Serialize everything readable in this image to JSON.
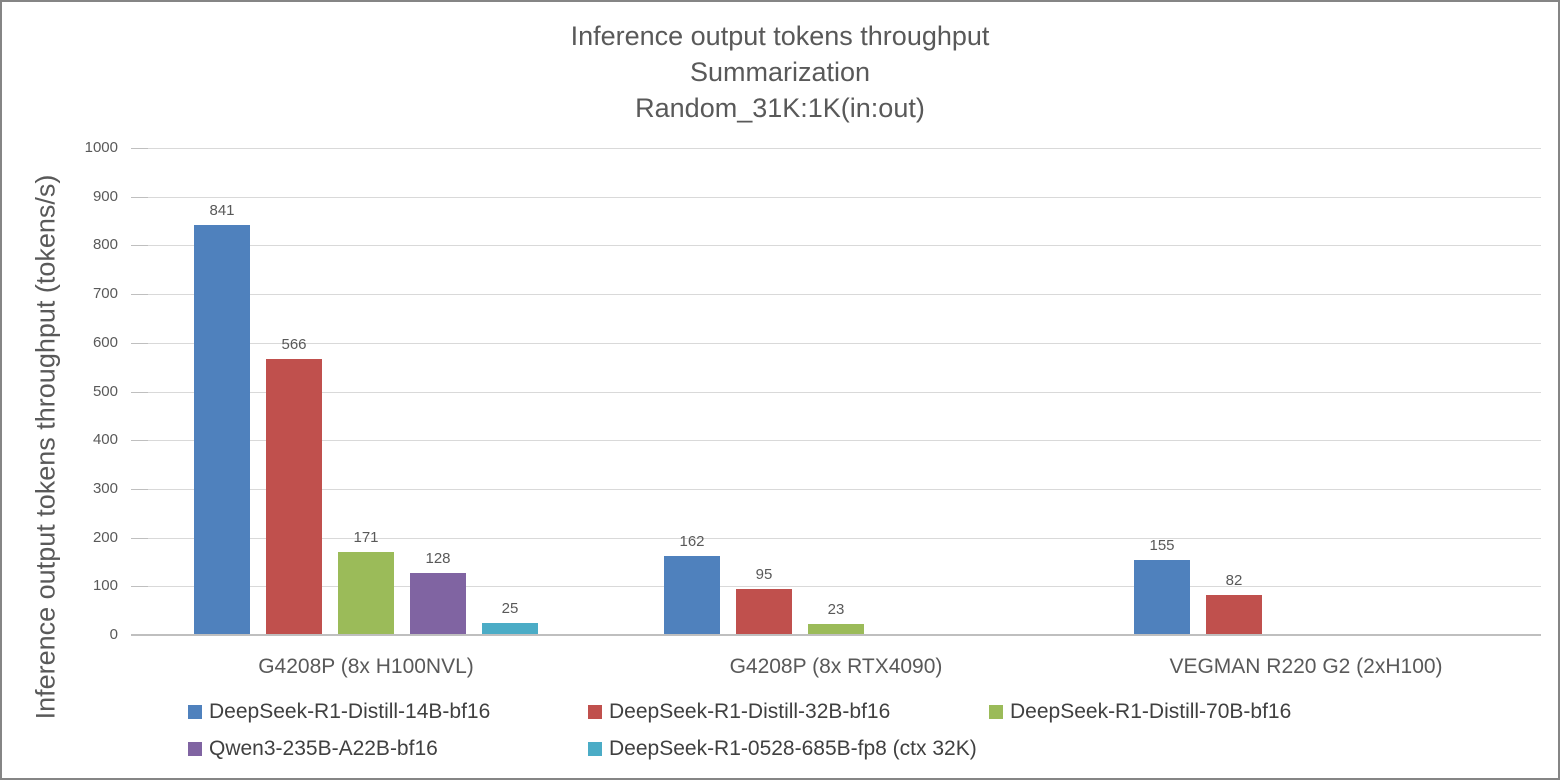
{
  "chart_data": {
    "type": "bar",
    "title_lines": [
      "Inference output tokens throughput",
      "Summarization",
      "Random_31K:1K(in:out)"
    ],
    "ylabel": "Inference output tokens throughput (tokens/s)",
    "xlabel": "",
    "ylim": [
      0,
      1000
    ],
    "yticks": [
      0,
      100,
      200,
      300,
      400,
      500,
      600,
      700,
      800,
      900,
      1000
    ],
    "grid": true,
    "legend_position": "bottom",
    "categories": [
      "G4208P (8x H100NVL)",
      "G4208P (8x RTX4090)",
      "VEGMAN R220 G2 (2xH100)"
    ],
    "series": [
      {
        "name": "DeepSeek-R1-Distill-14B-bf16",
        "color": "#4F81BD",
        "values": [
          841,
          162,
          155
        ]
      },
      {
        "name": "DeepSeek-R1-Distill-32B-bf16",
        "color": "#C0504D",
        "values": [
          566,
          95,
          82
        ]
      },
      {
        "name": "DeepSeek-R1-Distill-70B-bf16",
        "color": "#9BBB59",
        "values": [
          171,
          23,
          null
        ]
      },
      {
        "name": "Qwen3-235B-A22B-bf16",
        "color": "#8064A2",
        "values": [
          128,
          null,
          null
        ]
      },
      {
        "name": "DeepSeek-R1-0528-685B-fp8 (ctx 32K)",
        "color": "#4BACC6",
        "values": [
          25,
          null,
          null
        ]
      }
    ],
    "colors": {
      "label_text": "#595959",
      "legend_text": "#404040",
      "gridline": "#D9D9D9",
      "axis_line": "#BFBFBF"
    }
  }
}
